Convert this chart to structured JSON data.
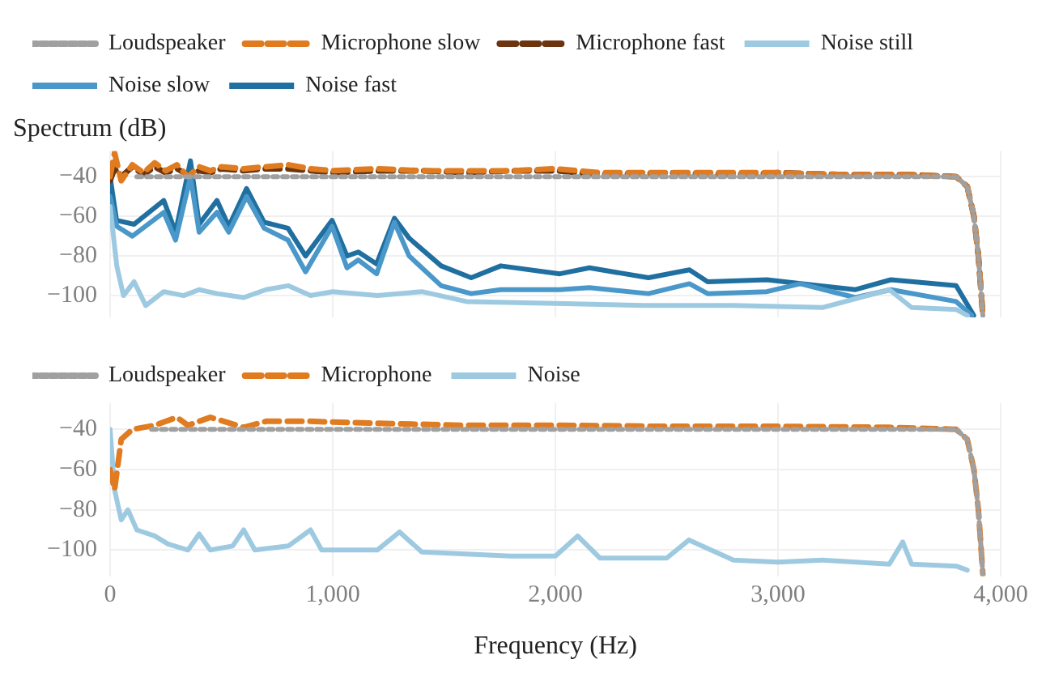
{
  "chart_data": [
    {
      "type": "line",
      "ylabel": "Spectrum (dB)",
      "xlim": [
        0,
        4000
      ],
      "xticks": [
        0,
        1000,
        2000,
        3000,
        4000
      ],
      "ylim": [
        -111,
        -27
      ],
      "yticks": [
        -100,
        -80,
        -60,
        -40
      ],
      "grid": true,
      "legend": "top",
      "tick_labels": "y",
      "series": [
        {
          "name": "Loudspeaker",
          "color": "#a0a0a0",
          "line_style": "dotted",
          "x": [
            120,
            500,
            1000,
            1500,
            2000,
            2500,
            3000,
            3500,
            3800,
            3850,
            3880,
            3900,
            3920
          ],
          "values": [
            -40,
            -40,
            -40,
            -40,
            -40,
            -40,
            -40,
            -40,
            -40,
            -45,
            -60,
            -80,
            -110
          ]
        },
        {
          "name": "Microphone slow",
          "color": "#e07b20",
          "line_style": "dashed",
          "x": [
            0,
            20,
            50,
            100,
            150,
            200,
            250,
            300,
            350,
            400,
            450,
            500,
            600,
            700,
            800,
            900,
            1000,
            1200,
            1400,
            1600,
            1800,
            2000,
            2200,
            2500,
            2800,
            3000,
            3300,
            3600,
            3800,
            3850,
            3880,
            3900,
            3920
          ],
          "values": [
            -40,
            -28,
            -42,
            -34,
            -38,
            -33,
            -37,
            -34,
            -40,
            -35,
            -37,
            -35,
            -36,
            -35,
            -34,
            -36,
            -37,
            -36,
            -37,
            -37,
            -37,
            -36,
            -38,
            -38,
            -38,
            -38,
            -39,
            -39,
            -40,
            -45,
            -60,
            -80,
            -110
          ]
        },
        {
          "name": "Microphone fast",
          "color": "#6b3510",
          "line_style": "dashed",
          "x": [
            0,
            20,
            50,
            100,
            150,
            200,
            250,
            300,
            350,
            400,
            450,
            500,
            600,
            700,
            800,
            900,
            1000,
            1200,
            1400,
            1600,
            1800,
            2000,
            2200,
            2500,
            2800,
            3000,
            3300,
            3600,
            3800,
            3850,
            3880,
            3900,
            3920
          ],
          "values": [
            -42,
            -36,
            -40,
            -35,
            -39,
            -35,
            -38,
            -36,
            -39,
            -37,
            -38,
            -36,
            -37,
            -36,
            -36,
            -37,
            -38,
            -37,
            -37,
            -38,
            -37,
            -37,
            -39,
            -38,
            -39,
            -38,
            -39,
            -39,
            -40,
            -45,
            -60,
            -80,
            -110
          ]
        },
        {
          "name": "Noise still",
          "color": "#9ecae1",
          "x": [
            0,
            30,
            60,
            108,
            160,
            241,
            330,
            400,
            480,
            600,
            700,
            800,
            900,
            1000,
            1200,
            1400,
            1600,
            2000,
            2400,
            2800,
            3200,
            3500,
            3600,
            3800,
            3850
          ],
          "values": [
            -55,
            -85,
            -100,
            -93,
            -105,
            -98,
            -100,
            -97,
            -99,
            -101,
            -97,
            -95,
            -100,
            -98,
            -100,
            -98,
            -103,
            -104,
            -105,
            -105,
            -106,
            -97,
            -106,
            -107,
            -110
          ]
        },
        {
          "name": "Noise slow",
          "color": "#4a97c9",
          "x": [
            0,
            30,
            100,
            241,
            294,
            361,
            400,
            480,
            533,
            613,
            692,
            799,
            878,
            997,
            1064,
            1115,
            1197,
            1277,
            1343,
            1487,
            1622,
            1755,
            2020,
            2153,
            2418,
            2602,
            2684,
            2950,
            3100,
            3348,
            3507,
            3800,
            3870
          ],
          "values": [
            -50,
            -65,
            -70,
            -58,
            -72,
            -40,
            -68,
            -58,
            -68,
            -50,
            -66,
            -72,
            -88,
            -65,
            -86,
            -82,
            -89,
            -63,
            -80,
            -95,
            -99,
            -97,
            -97,
            -96,
            -99,
            -94,
            -99,
            -98,
            -94,
            -101,
            -97,
            -103,
            -110
          ]
        },
        {
          "name": "Noise fast",
          "color": "#1f6fa0",
          "x": [
            0,
            29,
            108,
            241,
            294,
            361,
            400,
            480,
            533,
            613,
            692,
            799,
            878,
            997,
            1064,
            1115,
            1197,
            1277,
            1343,
            1487,
            1622,
            1755,
            2020,
            2153,
            2418,
            2602,
            2684,
            2950,
            3348,
            3507,
            3800,
            3879
          ],
          "values": [
            -40,
            -62,
            -64,
            -52,
            -68,
            -32,
            -64,
            -52,
            -65,
            -46,
            -63,
            -66,
            -80,
            -62,
            -80,
            -78,
            -84,
            -61,
            -71,
            -85,
            -91,
            -85,
            -89,
            -86,
            -91,
            -87,
            -93,
            -92,
            -97,
            -92,
            -95,
            -110
          ]
        }
      ]
    },
    {
      "type": "line",
      "xlabel": "Frequency (Hz)",
      "xlim": [
        0,
        4000
      ],
      "xticks": [
        0,
        {
          "value": 1000,
          "label": "1,000"
        },
        {
          "value": 2000,
          "label": "2,000"
        },
        {
          "value": 3000,
          "label": "3,000"
        },
        {
          "value": 4000,
          "label": "4,000"
        }
      ],
      "ylim": [
        -113,
        -27
      ],
      "yticks": [
        -100,
        -80,
        -60,
        -40
      ],
      "grid": true,
      "legend": "top",
      "series": [
        {
          "name": "Loudspeaker",
          "color": "#a0a0a0",
          "line_style": "dotted",
          "x": [
            186,
            500,
            1000,
            1500,
            2000,
            2500,
            3000,
            3500,
            3800,
            3850,
            3880,
            3900,
            3920
          ],
          "values": [
            -40,
            -40,
            -40,
            -40,
            -40,
            -40,
            -40,
            -40,
            -40,
            -45,
            -60,
            -80,
            -112
          ]
        },
        {
          "name": "Microphone",
          "color": "#e07b20",
          "line_style": "dashed",
          "x": [
            0,
            20,
            50,
            100,
            200,
            300,
            350,
            450,
            600,
            700,
            900,
            1200,
            1600,
            2000,
            2500,
            3000,
            3500,
            3800,
            3850,
            3880,
            3900,
            3920
          ],
          "values": [
            -60,
            -70,
            -45,
            -40,
            -38,
            -34,
            -38,
            -34,
            -39,
            -36,
            -36,
            -37,
            -38,
            -38,
            -38.5,
            -38.5,
            -39,
            -40,
            -45,
            -60,
            -80,
            -112
          ]
        },
        {
          "name": "Noise",
          "color": "#9ecae1",
          "x": [
            0,
            20,
            50,
            80,
            120,
            200,
            260,
            350,
            400,
            450,
            550,
            600,
            650,
            800,
            900,
            950,
            1200,
            1300,
            1400,
            1600,
            1800,
            2000,
            2100,
            2200,
            2500,
            2600,
            2800,
            3000,
            3200,
            3500,
            3560,
            3600,
            3800,
            3850
          ],
          "values": [
            -40,
            -70,
            -85,
            -80,
            -90,
            -93,
            -97,
            -100,
            -92,
            -100,
            -98,
            -90,
            -100,
            -98,
            -90,
            -100,
            -100,
            -91,
            -101,
            -102,
            -103,
            -103,
            -93,
            -104,
            -104,
            -95,
            -105,
            -106,
            -105,
            -107,
            -96,
            -107,
            -108,
            -110
          ]
        }
      ]
    }
  ]
}
